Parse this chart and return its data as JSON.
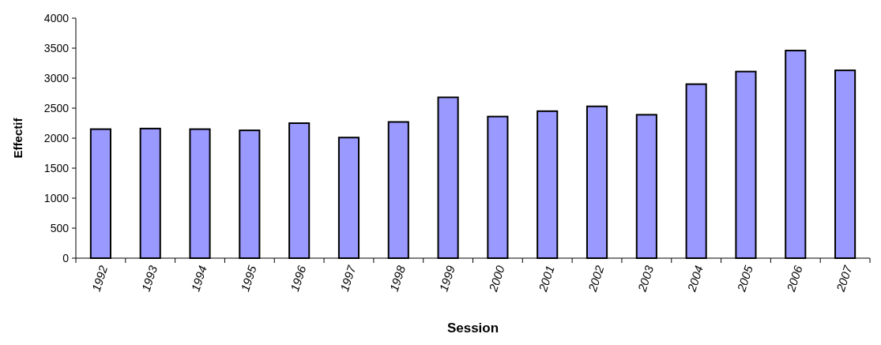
{
  "chart_data": {
    "type": "bar",
    "xlabel": "Session",
    "ylabel": "Effectif",
    "categories": [
      "1992",
      "1993",
      "1994",
      "1995",
      "1996",
      "1997",
      "1998",
      "1999",
      "2000",
      "2001",
      "2002",
      "2003",
      "2004",
      "2005",
      "2006",
      "2007"
    ],
    "values": [
      2150,
      2160,
      2150,
      2130,
      2250,
      2010,
      2270,
      2680,
      2360,
      2450,
      2530,
      2390,
      2900,
      3110,
      3460,
      3130
    ],
    "color": "#9999ff",
    "ylim": [
      0,
      4000
    ],
    "yticks": [
      0,
      500,
      1000,
      1500,
      2000,
      2500,
      3000,
      3500,
      4000
    ],
    "grid": false
  }
}
